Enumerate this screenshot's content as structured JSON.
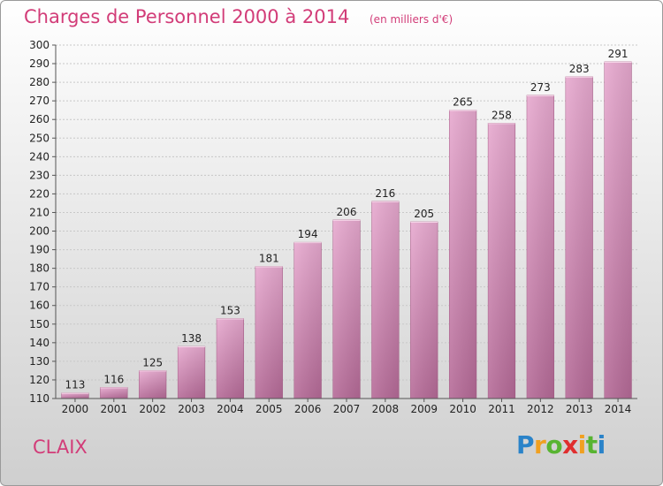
{
  "header": {
    "title": "Charges de Personnel 2000 à 2014",
    "subtitle": "(en milliers d'€)"
  },
  "footer": {
    "city": "CLAIX",
    "brand": [
      "P",
      "r",
      "o",
      "x",
      "i",
      "t",
      "i"
    ]
  },
  "colors": {
    "accent": "#d23c78",
    "bar_top": "#e7a9cf",
    "bar_bottom": "#b56a97"
  },
  "chart_data": {
    "type": "bar",
    "title": "Charges de Personnel 2000 à 2014",
    "subtitle": "(en milliers d'€)",
    "xlabel": "",
    "ylabel": "",
    "categories": [
      "2000",
      "2001",
      "2002",
      "2003",
      "2004",
      "2005",
      "2006",
      "2007",
      "2008",
      "2009",
      "2010",
      "2011",
      "2012",
      "2013",
      "2014"
    ],
    "values": [
      113,
      116,
      125,
      138,
      153,
      181,
      194,
      206,
      216,
      205,
      265,
      258,
      273,
      283,
      291
    ],
    "ylim": [
      110,
      300
    ],
    "yticks": [
      110,
      120,
      130,
      140,
      150,
      160,
      170,
      180,
      190,
      200,
      210,
      220,
      230,
      240,
      250,
      260,
      270,
      280,
      290,
      300
    ],
    "grid": true,
    "show_value_labels": true
  }
}
